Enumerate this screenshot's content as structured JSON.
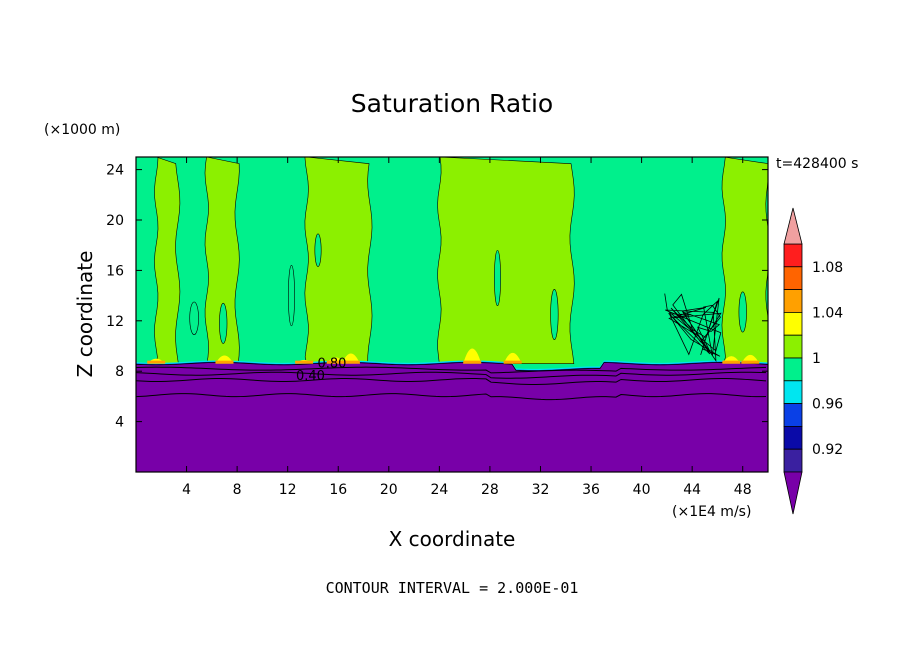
{
  "chart_data": {
    "type": "heatmap",
    "title": "Saturation Ratio",
    "xlabel": "X coordinate",
    "ylabel": "Z coordinate",
    "x_unit": "(×1E4 m/s)",
    "y_unit": "(×1000 m)",
    "time_label": "t=428400 s",
    "footer": "CONTOUR INTERVAL = 2.000E-01",
    "xlim": [
      0,
      50
    ],
    "ylim": [
      0,
      25
    ],
    "x_ticks": [
      4,
      8,
      12,
      16,
      20,
      24,
      28,
      32,
      36,
      40,
      44,
      48
    ],
    "y_ticks": [
      4,
      8,
      12,
      16,
      20,
      24
    ],
    "contour_labels": [
      {
        "text": "0.80",
        "x": 15.5,
        "z": 8.3
      },
      {
        "text": "0.40",
        "x": 13.8,
        "z": 7.3
      }
    ],
    "colorbar": {
      "levels": [
        0.9,
        0.92,
        0.94,
        0.96,
        0.98,
        1.0,
        1.02,
        1.04,
        1.06,
        1.08,
        1.1
      ],
      "colors": [
        "#3a20a0",
        "#0a0aa8",
        "#0a40e6",
        "#00e6f0",
        "#00f08c",
        "#8cf000",
        "#ffff00",
        "#ffa000",
        "#ff6400",
        "#ff1e1e"
      ],
      "under_color": "#7800a8",
      "over_color": "#f0a0a0",
      "tick_labels": [
        {
          "value": 0.92,
          "label": "0.92"
        },
        {
          "value": 0.96,
          "label": "0.96"
        },
        {
          "value": 1.0,
          "label": "1"
        },
        {
          "value": 1.04,
          "label": "1.04"
        },
        {
          "value": 1.08,
          "label": "1.08"
        }
      ]
    },
    "regions": {
      "lower_layer": {
        "range": "< 0.90",
        "top_z": 8.6,
        "color": "#7800a8"
      },
      "background": {
        "range": "0.98 - 1.00",
        "color": "#00f08c"
      },
      "columns": [
        {
          "x0": 1.6,
          "x1": 3.3,
          "range": "1.00 - 1.02"
        },
        {
          "x0": 5.6,
          "x1": 8.0,
          "range": "1.00 - 1.02"
        },
        {
          "x0": 13.5,
          "x1": 18.5,
          "range": "1.00 - 1.02"
        },
        {
          "x0": 24.0,
          "x1": 34.5,
          "range": "1.00 - 1.02"
        },
        {
          "x0": 46.5,
          "x1": 50.0,
          "range": "1.00 - 1.02"
        }
      ]
    }
  }
}
